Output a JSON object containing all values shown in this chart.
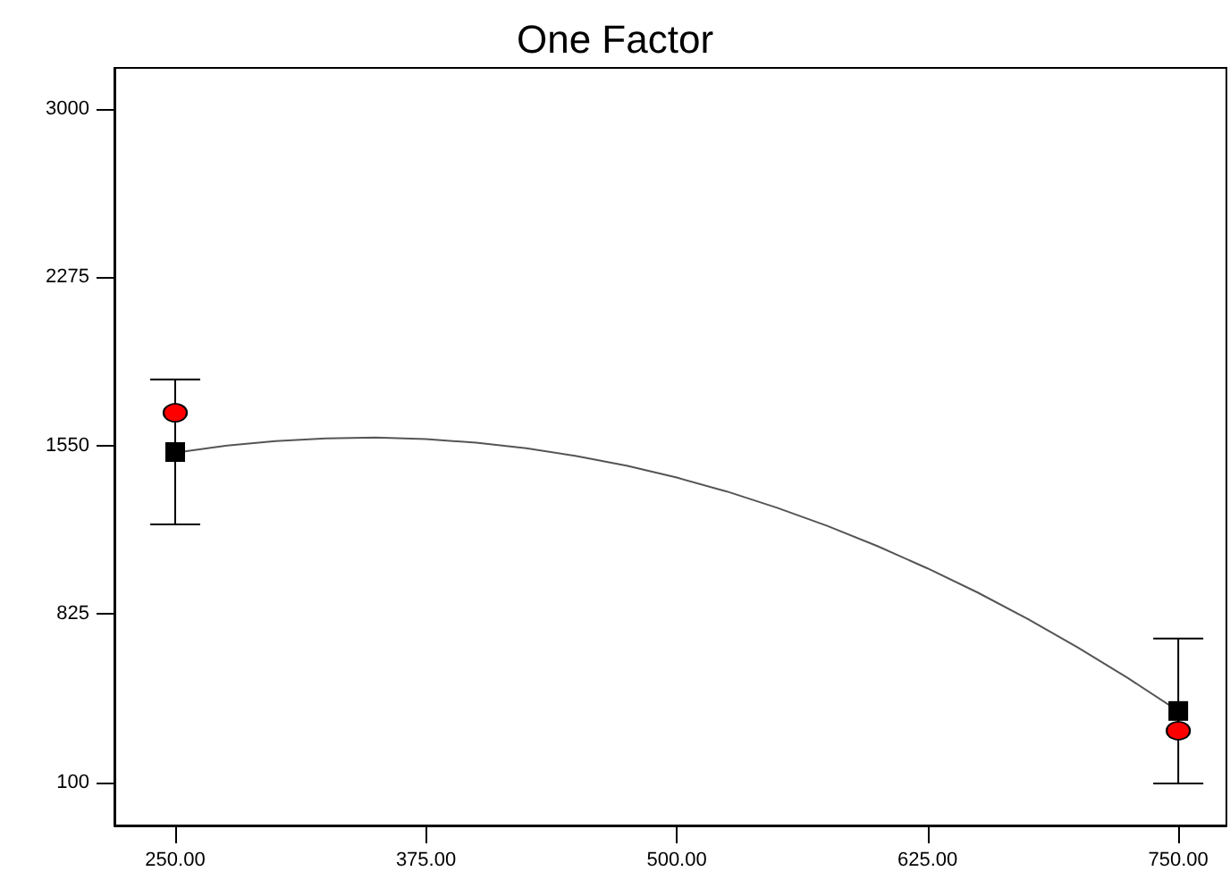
{
  "chart_data": {
    "type": "scatter",
    "title": "One Factor",
    "xlim": [
      219.7,
      774
    ],
    "xticks": [
      {
        "value": 250,
        "label": "250.00"
      },
      {
        "value": 375,
        "label": "375.00"
      },
      {
        "value": 500,
        "label": "500.00"
      },
      {
        "value": 625,
        "label": "625.00"
      },
      {
        "value": 750,
        "label": "750.00"
      }
    ],
    "ylim": [
      -85,
      3177
    ],
    "yticks": [
      100,
      825,
      1550,
      2275,
      3000
    ],
    "grid": false,
    "series": [
      {
        "type": "line",
        "color": "#555555",
        "marker": "none",
        "line_style": "solid",
        "x": [
          250,
          275,
          300,
          325,
          350,
          375,
          400,
          425,
          450,
          475,
          500,
          525,
          550,
          575,
          600,
          625,
          650,
          675,
          700,
          725,
          750
        ],
        "values": [
          1520,
          1550,
          1570,
          1582,
          1585,
          1579,
          1563,
          1539,
          1506,
          1464,
          1413,
          1353,
          1283,
          1205,
          1118,
          1022,
          918,
          804,
          681,
          549,
          408
        ]
      },
      {
        "type": "scatter",
        "color": "#ff0000",
        "marker": "circle",
        "x": [
          250,
          750
        ],
        "values": [
          1692,
          323
        ]
      },
      {
        "type": "scatter",
        "color": "#000000",
        "marker": "square",
        "x": [
          250,
          750
        ],
        "values": [
          1523,
          408
        ],
        "errors": [
          312,
          312
        ]
      }
    ]
  }
}
